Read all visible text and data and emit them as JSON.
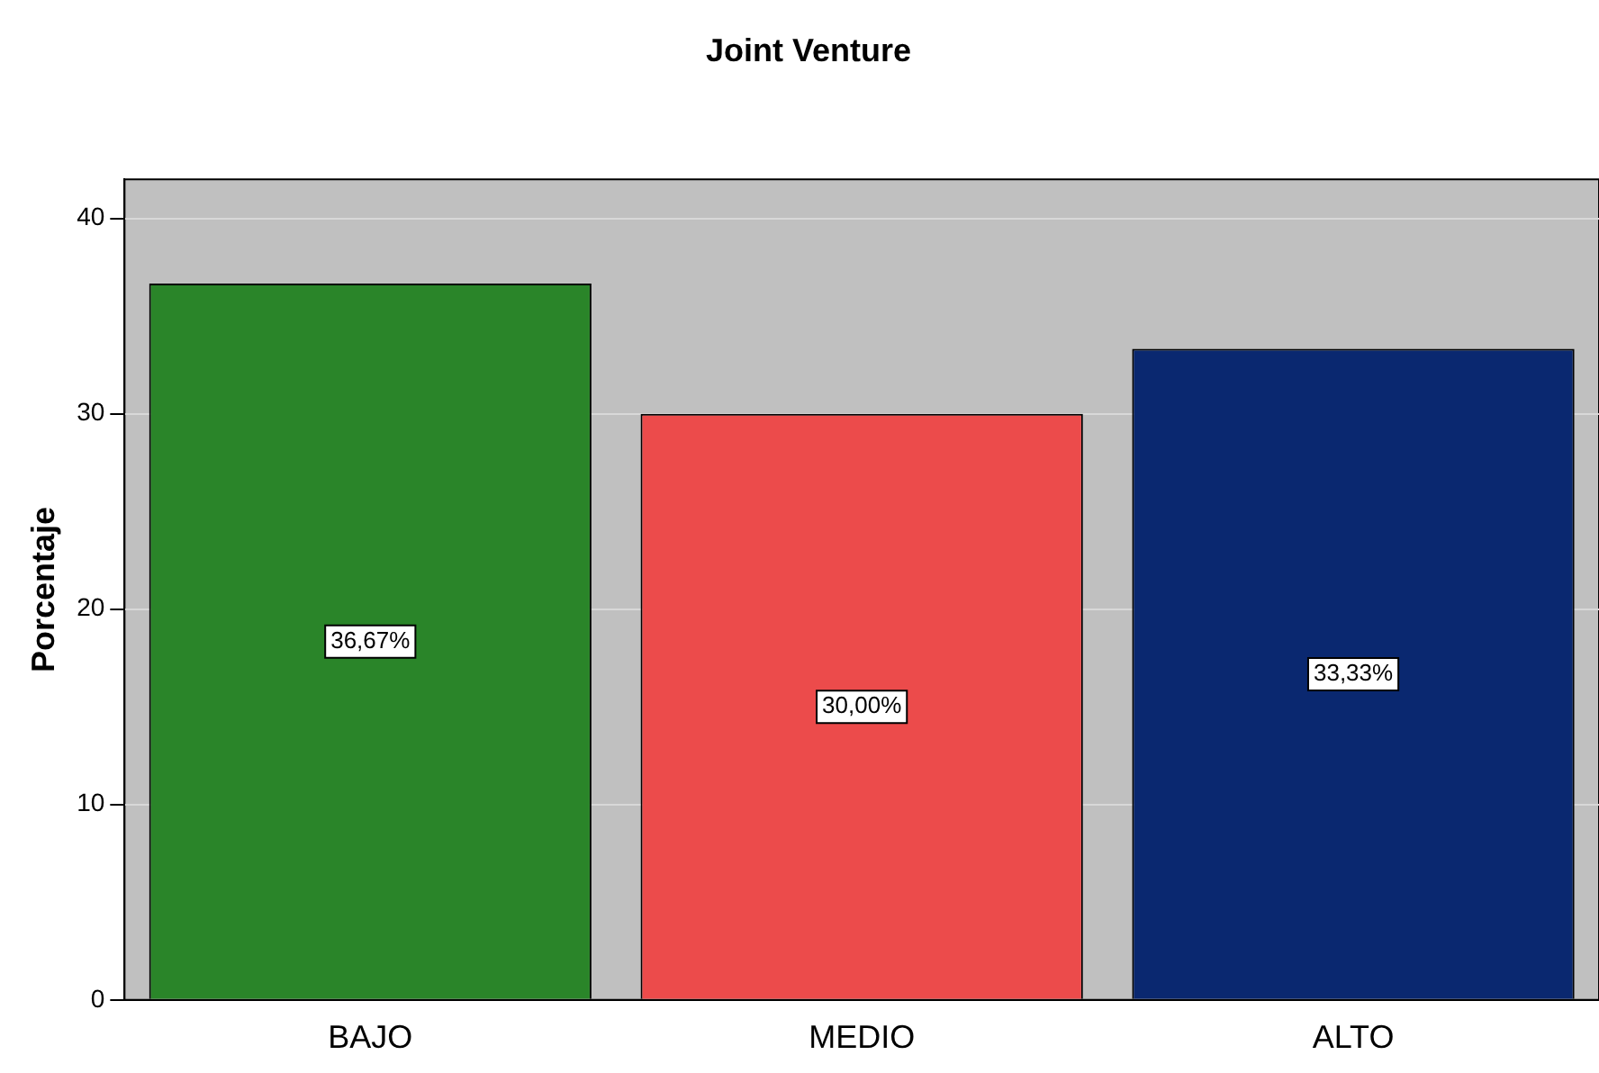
{
  "chart_data": {
    "type": "bar",
    "title": "Joint Venture",
    "ylabel": "Porcentaje",
    "categories": [
      "BAJO",
      "MEDIO",
      "ALTO"
    ],
    "values": [
      36.67,
      30.0,
      33.33
    ],
    "colors": [
      "#2a8529",
      "#ec4b4b",
      "#0a2870"
    ],
    "value_labels": [
      "36,67%",
      "30,00%",
      "33,33%"
    ],
    "ylim": [
      0,
      42
    ],
    "yticks": [
      0,
      10,
      20,
      30,
      40
    ],
    "grid": "y"
  }
}
